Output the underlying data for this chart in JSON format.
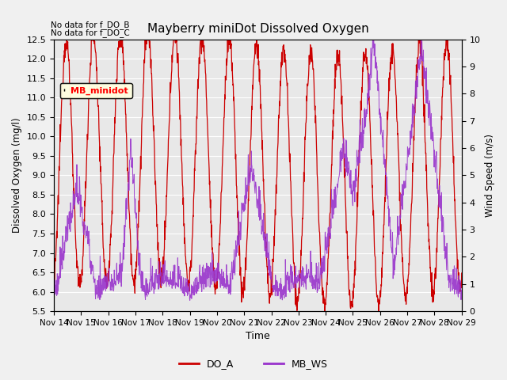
{
  "title": "Mayberry miniDot Dissolved Oxygen",
  "xlabel": "Time",
  "ylabel_left": "Dissolved Oxygen (mg/l)",
  "ylabel_right": "Wind Speed (m/s)",
  "ylim_left": [
    5.5,
    12.5
  ],
  "ylim_right": [
    0.0,
    10.0
  ],
  "xtick_labels": [
    "Nov 14",
    "Nov 15",
    "Nov 16",
    "Nov 17",
    "Nov 18",
    "Nov 19",
    "Nov 20",
    "Nov 21",
    "Nov 22",
    "Nov 23",
    "Nov 24",
    "Nov 25",
    "Nov 26",
    "Nov 27",
    "Nov 28",
    "Nov 29"
  ],
  "no_data_notes": [
    "No data for f_DO_B",
    "No data for f_DO_C"
  ],
  "legend_box_label": "MB_minidot",
  "do_color": "#cc0000",
  "ws_color": "#9933cc",
  "background_color": "#e8e8e8",
  "plot_bg_color": "#e8e8e8",
  "grid_color": "#ffffff",
  "legend_labels": [
    "DO_A",
    "MB_WS"
  ],
  "figsize": [
    6.4,
    4.8
  ],
  "dpi": 100
}
